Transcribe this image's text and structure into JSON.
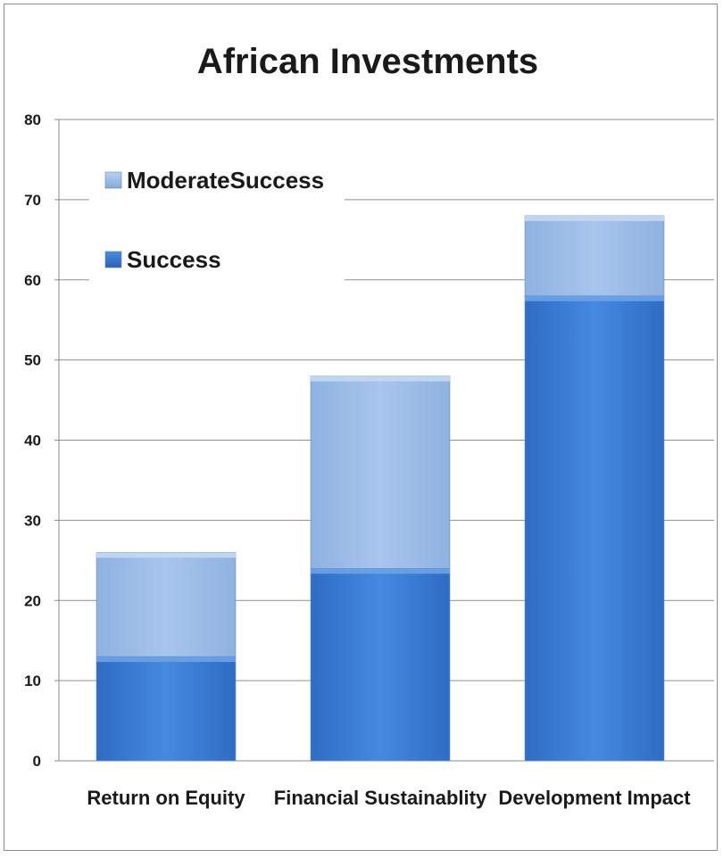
{
  "chart_data": {
    "type": "bar",
    "stacked": true,
    "title": "African Investments",
    "xlabel": "",
    "ylabel": "",
    "categories": [
      "Return on Equity",
      "Financial Sustainablity",
      "Development Impact"
    ],
    "series": [
      {
        "name": "Success",
        "values": [
          13,
          24,
          58
        ],
        "color": "#3b7dd8"
      },
      {
        "name": "ModerateSuccess",
        "values": [
          13,
          24,
          10
        ],
        "color": "#9dbde6"
      }
    ],
    "ylim": [
      0,
      80
    ],
    "yticks": [
      0,
      10,
      20,
      30,
      40,
      50,
      60,
      70,
      80
    ],
    "grid": true,
    "legend": {
      "placement": "top-left",
      "order": [
        "ModerateSuccess",
        "Success"
      ]
    }
  }
}
